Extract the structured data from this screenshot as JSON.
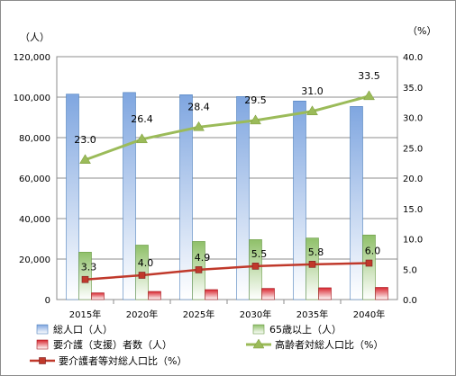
{
  "chart_data": {
    "type": "bar",
    "categories": [
      "2015年",
      "2020年",
      "2025年",
      "2030年",
      "2035年",
      "2040年"
    ],
    "left_unit": "（人）",
    "right_unit": "（%）",
    "ylim_left": [
      0,
      120000
    ],
    "yticks_left": [
      "0",
      "20,000",
      "40,000",
      "60,000",
      "80,000",
      "100,000",
      "120,000"
    ],
    "ylim_right": [
      0,
      40
    ],
    "yticks_right": [
      "0.0",
      "5.0",
      "10.0",
      "15.0",
      "20.0",
      "25.0",
      "30.0",
      "35.0",
      "40.0"
    ],
    "grid": true,
    "legend_placement": "bottom",
    "bar_series": [
      {
        "name": "総人口（人）",
        "values": [
          101500,
          102300,
          101200,
          100300,
          98100,
          95400
        ],
        "color": "#7fa6e0"
      },
      {
        "name": "65歳以上（人）",
        "values": [
          23400,
          26900,
          28700,
          29600,
          30400,
          31900
        ],
        "color": "#8fc069"
      },
      {
        "name": "要介護（支援）者数（人）",
        "values": [
          3300,
          4000,
          4900,
          5500,
          5800,
          6000
        ],
        "color": "#d9262f"
      }
    ],
    "line_series": [
      {
        "name": "高齢者対総人口比（%）",
        "values": [
          23.0,
          26.4,
          28.4,
          29.5,
          31.0,
          33.5
        ],
        "labels": [
          "23.0",
          "26.4",
          "28.4",
          "29.5",
          "31.0",
          "33.5"
        ],
        "color": "#9bbb59",
        "marker": "triangle"
      },
      {
        "name": "要介護者等対総人口比（%）",
        "values": [
          3.3,
          4.0,
          4.9,
          5.5,
          5.8,
          6.0
        ],
        "labels": [
          "3.3",
          "4.0",
          "4.9",
          "5.5",
          "5.8",
          "6.0"
        ],
        "color": "#c0392b",
        "marker": "square"
      }
    ]
  }
}
